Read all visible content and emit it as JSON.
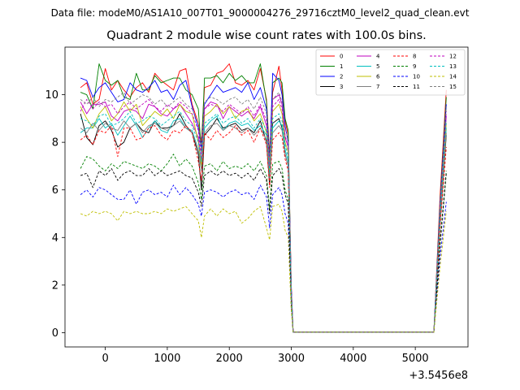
{
  "figure": {
    "suptitle": "Data file: modeM0/AS1A10_007T01_9000004276_29716cztM0_level2_quad_clean.evt",
    "title": "Quadrant 2 module wise count rates with 100.0s bins."
  },
  "chart_data": {
    "type": "line",
    "title": "Quadrant 2 module wise count rates with 100.0s bins.",
    "xlabel": "",
    "ylabel": "",
    "x_offset_label": "+3.5456e8",
    "xlim": [
      -650,
      5850
    ],
    "ylim": [
      -0.6,
      12.0
    ],
    "xticks": [
      0,
      1000,
      2000,
      3000,
      4000,
      5000
    ],
    "yticks": [
      0,
      2,
      4,
      6,
      8,
      10
    ],
    "grid": false,
    "legend": {
      "placement": "top-right",
      "columns": 4
    },
    "x": [
      -400,
      -300,
      -200,
      -100,
      0,
      100,
      200,
      300,
      400,
      500,
      600,
      700,
      800,
      900,
      1000,
      1100,
      1200,
      1300,
      1400,
      1500,
      1550,
      1600,
      1700,
      1800,
      1900,
      2000,
      2100,
      2200,
      2300,
      2400,
      2500,
      2600,
      2650,
      2700,
      2800,
      2850,
      2900,
      2950,
      3000,
      3030,
      3100,
      5300,
      5400,
      5500
    ],
    "series": [
      {
        "name": "0",
        "color": "#ff0000",
        "dash": "solid",
        "values": [
          10.3,
          10.5,
          9.6,
          9.8,
          11.1,
          10.2,
          10.6,
          10.2,
          9.9,
          10.3,
          10.5,
          10.1,
          10.9,
          10.6,
          10.4,
          10.2,
          11.0,
          11.1,
          9.6,
          8.8,
          8.0,
          10.3,
          10.4,
          10.9,
          11.0,
          11.3,
          10.5,
          10.4,
          10.6,
          10.2,
          11.1,
          9.8,
          7.5,
          10.1,
          11.2,
          10.2,
          8.9,
          8.3,
          2.0,
          0.03,
          0.02,
          0.03,
          5.8,
          10.2
        ]
      },
      {
        "name": "1",
        "color": "#008000",
        "dash": "solid",
        "values": [
          10.1,
          10.0,
          9.4,
          11.3,
          10.6,
          10.4,
          10.6,
          9.9,
          9.8,
          10.9,
          10.2,
          10.2,
          10.8,
          10.5,
          10.6,
          10.7,
          10.7,
          10.2,
          10.0,
          9.4,
          7.6,
          10.7,
          10.7,
          10.8,
          10.5,
          10.9,
          10.6,
          10.8,
          10.5,
          10.5,
          11.3,
          9.7,
          7.3,
          10.5,
          10.7,
          10.5,
          9.0,
          8.5,
          1.8,
          0.02,
          0.02,
          0.02,
          5.5,
          9.9
        ]
      },
      {
        "name": "2",
        "color": "#0000ff",
        "dash": "solid",
        "values": [
          10.7,
          10.6,
          9.9,
          10.3,
          10.5,
          10.1,
          9.7,
          9.8,
          10.5,
          10.2,
          10.1,
          10.3,
          10.6,
          10.1,
          10.2,
          9.8,
          10.4,
          10.6,
          9.5,
          8.6,
          7.7,
          9.6,
          10.0,
          10.4,
          10.1,
          10.2,
          10.3,
          10.1,
          10.5,
          9.8,
          10.3,
          9.4,
          7.1,
          10.9,
          10.6,
          10.0,
          8.7,
          8.0,
          1.9,
          0.02,
          0.02,
          0.02,
          5.4,
          9.6
        ]
      },
      {
        "name": "3",
        "color": "#000000",
        "dash": "solid",
        "values": [
          9.2,
          8.2,
          7.9,
          8.7,
          8.9,
          8.5,
          7.8,
          8.0,
          8.6,
          8.8,
          8.5,
          8.4,
          8.9,
          8.6,
          8.6,
          8.7,
          9.2,
          8.7,
          8.4,
          7.5,
          6.0,
          8.3,
          8.6,
          9.0,
          8.6,
          8.7,
          8.8,
          8.5,
          8.6,
          8.4,
          8.9,
          8.0,
          6.2,
          8.8,
          9.0,
          8.6,
          7.5,
          7.0,
          1.5,
          0.02,
          0.02,
          0.02,
          4.6,
          8.3
        ]
      },
      {
        "name": "4",
        "color": "#bf00bf",
        "dash": "solid",
        "values": [
          9.7,
          9.2,
          9.6,
          9.6,
          9.7,
          9.1,
          8.9,
          9.3,
          9.4,
          9.3,
          9.0,
          9.6,
          9.5,
          9.2,
          9.1,
          9.4,
          9.6,
          9.2,
          8.8,
          8.2,
          7.1,
          9.4,
          9.7,
          9.6,
          9.0,
          9.5,
          9.3,
          9.1,
          9.3,
          9.0,
          9.5,
          8.7,
          6.9,
          9.8,
          10.0,
          9.6,
          8.2,
          7.8,
          1.7,
          0.02,
          0.02,
          0.02,
          5.1,
          9.1
        ]
      },
      {
        "name": "5",
        "color": "#00bfbf",
        "dash": "solid",
        "values": [
          8.4,
          8.6,
          8.6,
          9.0,
          8.6,
          8.8,
          8.3,
          8.7,
          9.1,
          8.7,
          8.2,
          8.6,
          8.9,
          8.5,
          8.4,
          8.9,
          9.0,
          8.6,
          8.5,
          7.7,
          6.9,
          8.6,
          8.9,
          9.1,
          8.5,
          8.8,
          8.9,
          8.7,
          8.8,
          8.5,
          8.7,
          8.3,
          6.5,
          8.6,
          8.9,
          8.7,
          7.7,
          7.2,
          1.6,
          0.02,
          0.02,
          0.02,
          4.9,
          8.6
        ]
      },
      {
        "name": "6",
        "color": "#bfbf00",
        "dash": "solid",
        "values": [
          9.5,
          9.0,
          8.6,
          9.2,
          9.5,
          8.9,
          9.2,
          9.7,
          9.3,
          9.6,
          8.7,
          9.0,
          9.3,
          9.1,
          9.4,
          9.0,
          9.6,
          9.3,
          9.2,
          8.0,
          7.0,
          9.1,
          9.3,
          9.6,
          9.2,
          9.5,
          9.0,
          9.3,
          9.4,
          8.9,
          9.2,
          8.4,
          6.7,
          9.3,
          9.6,
          9.2,
          8.0,
          7.6,
          1.6,
          0.02,
          0.02,
          0.02,
          5.0,
          8.8
        ]
      },
      {
        "name": "7",
        "color": "#808080",
        "dash": "solid",
        "values": [
          8.6,
          8.4,
          8.8,
          8.5,
          8.8,
          8.6,
          8.5,
          8.9,
          8.6,
          8.8,
          8.4,
          8.7,
          8.8,
          8.6,
          8.5,
          8.7,
          8.9,
          8.6,
          8.4,
          7.7,
          6.8,
          8.4,
          8.7,
          8.8,
          8.5,
          8.7,
          8.6,
          8.4,
          8.6,
          8.3,
          8.6,
          8.1,
          6.4,
          8.4,
          8.7,
          8.5,
          7.5,
          7.0,
          1.5,
          0.02,
          0.02,
          0.02,
          4.7,
          8.4
        ]
      },
      {
        "name": "8",
        "color": "#ff0000",
        "dash": "dashed",
        "values": [
          8.1,
          8.3,
          7.9,
          8.5,
          8.4,
          8.7,
          7.4,
          8.6,
          8.6,
          8.1,
          8.2,
          8.6,
          8.7,
          8.3,
          8.1,
          8.5,
          8.4,
          8.7,
          8.4,
          7.2,
          6.4,
          8.4,
          8.1,
          8.5,
          8.2,
          8.4,
          8.7,
          8.3,
          8.5,
          8.0,
          8.6,
          7.9,
          6.1,
          8.1,
          8.4,
          8.2,
          7.3,
          6.8,
          1.4,
          0.02,
          0.02,
          0.02,
          4.5,
          7.8
        ]
      },
      {
        "name": "9",
        "color": "#008000",
        "dash": "dashed",
        "values": [
          6.9,
          7.4,
          7.3,
          7.0,
          6.8,
          7.1,
          6.9,
          7.2,
          7.1,
          7.0,
          6.9,
          7.1,
          7.0,
          6.8,
          7.1,
          7.5,
          7.0,
          7.3,
          7.0,
          6.3,
          5.6,
          7.0,
          7.1,
          6.8,
          7.2,
          6.9,
          7.0,
          6.9,
          7.1,
          6.8,
          7.2,
          6.6,
          5.2,
          7.1,
          7.2,
          6.9,
          6.0,
          5.6,
          1.2,
          0.02,
          0.02,
          0.02,
          3.9,
          6.8
        ]
      },
      {
        "name": "10",
        "color": "#0000ff",
        "dash": "dashed",
        "values": [
          5.8,
          6.0,
          5.7,
          6.1,
          6.0,
          5.8,
          5.6,
          5.6,
          6.0,
          5.4,
          5.9,
          6.0,
          5.8,
          5.9,
          5.7,
          6.2,
          5.8,
          6.1,
          5.8,
          5.4,
          4.9,
          5.9,
          6.0,
          5.9,
          5.7,
          5.9,
          6.0,
          5.8,
          5.9,
          5.6,
          6.2,
          5.7,
          4.4,
          5.8,
          6.1,
          5.8,
          5.0,
          4.6,
          1.0,
          0.02,
          0.02,
          0.02,
          3.2,
          5.5
        ]
      },
      {
        "name": "11",
        "color": "#000000",
        "dash": "dashed",
        "values": [
          6.6,
          6.7,
          6.1,
          6.8,
          6.6,
          6.9,
          6.4,
          6.7,
          6.8,
          6.6,
          6.6,
          6.9,
          6.6,
          6.8,
          6.6,
          6.7,
          6.8,
          6.6,
          6.5,
          5.9,
          5.3,
          6.6,
          6.8,
          6.6,
          6.8,
          6.6,
          6.7,
          6.5,
          6.7,
          6.4,
          6.9,
          6.4,
          5.0,
          6.6,
          6.9,
          6.6,
          5.8,
          5.4,
          1.2,
          0.02,
          0.02,
          0.02,
          3.7,
          6.7
        ]
      },
      {
        "name": "12",
        "color": "#bf00bf",
        "dash": "dashed",
        "values": [
          9.3,
          9.8,
          9.4,
          9.7,
          9.5,
          9.6,
          9.2,
          9.5,
          9.7,
          9.4,
          9.6,
          9.8,
          9.5,
          9.3,
          9.6,
          9.4,
          9.7,
          9.5,
          9.2,
          8.5,
          7.3,
          9.4,
          9.6,
          9.5,
          9.3,
          9.6,
          9.4,
          9.2,
          9.5,
          9.1,
          9.6,
          8.9,
          7.0,
          9.5,
          9.8,
          9.4,
          8.3,
          7.8,
          1.7,
          0.02,
          0.02,
          0.02,
          5.2,
          9.3
        ]
      },
      {
        "name": "13",
        "color": "#00bfbf",
        "dash": "dashed",
        "values": [
          9.0,
          8.9,
          8.7,
          9.1,
          9.2,
          8.7,
          8.8,
          9.0,
          9.3,
          8.8,
          8.9,
          9.1,
          9.0,
          8.7,
          8.9,
          9.1,
          9.3,
          8.9,
          8.7,
          8.0,
          7.2,
          8.8,
          9.0,
          9.2,
          8.8,
          9.0,
          9.1,
          8.8,
          9.0,
          8.6,
          9.0,
          8.5,
          6.7,
          9.0,
          9.2,
          8.9,
          7.9,
          7.4,
          1.6,
          0.02,
          0.02,
          0.02,
          5.0,
          8.9
        ]
      },
      {
        "name": "14",
        "color": "#bfbf00",
        "dash": "dashed",
        "values": [
          5.0,
          4.9,
          5.1,
          5.0,
          5.1,
          5.0,
          4.7,
          5.1,
          5.0,
          5.1,
          5.0,
          5.0,
          5.1,
          5.0,
          5.2,
          5.1,
          5.2,
          5.3,
          5.0,
          4.7,
          4.0,
          4.9,
          5.2,
          4.9,
          5.2,
          5.0,
          5.1,
          4.6,
          4.8,
          5.1,
          5.3,
          4.4,
          3.9,
          5.3,
          5.4,
          5.1,
          4.3,
          4.0,
          0.9,
          0.02,
          0.02,
          0.02,
          2.8,
          5.1
        ]
      },
      {
        "name": "15",
        "color": "#808080",
        "dash": "dashed",
        "values": [
          9.8,
          9.6,
          9.9,
          9.5,
          9.8,
          9.7,
          9.9,
          10.1,
          9.6,
          9.8,
          10.0,
          9.9,
          9.6,
          9.8,
          9.5,
          9.7,
          9.9,
          9.6,
          9.4,
          8.8,
          7.6,
          9.7,
          9.9,
          9.8,
          9.6,
          9.8,
          9.9,
          9.6,
          9.8,
          9.4,
          9.9,
          9.2,
          7.2,
          9.8,
          10.1,
          9.7,
          8.6,
          8.1,
          1.8,
          0.02,
          0.02,
          0.02,
          5.3,
          9.5
        ]
      }
    ]
  }
}
